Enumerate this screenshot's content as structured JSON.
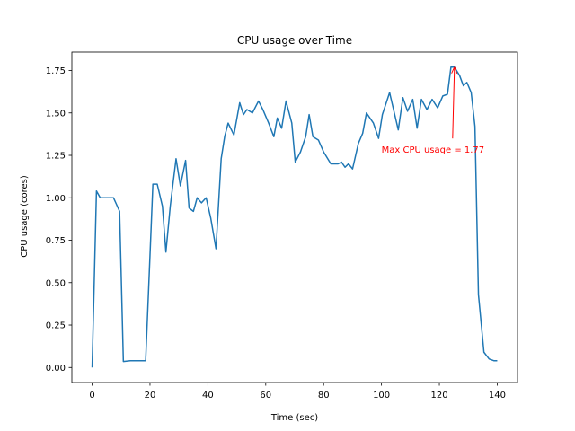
{
  "chart_data": {
    "type": "line",
    "title": "CPU usage over Time",
    "xlabel": "Time (sec)",
    "ylabel": "CPU usage (cores)",
    "x": [
      0,
      1.5,
      2.8,
      4.9,
      7.4,
      9.5,
      10.8,
      13.2,
      16.3,
      18.5,
      20,
      21,
      22.5,
      24.3,
      25.5,
      27,
      29,
      30.5,
      32.3,
      33.5,
      35,
      36.3,
      37.8,
      39.4,
      41,
      42.8,
      44.6,
      45.8,
      47,
      49,
      51,
      52.3,
      53.5,
      55.4,
      57.5,
      59,
      61,
      62.8,
      64,
      65.5,
      67,
      69,
      70.2,
      72,
      73.8,
      75,
      76.3,
      78.2,
      80,
      82.5,
      85,
      86.2,
      87.4,
      88.6,
      90,
      92,
      93.5,
      94.8,
      97.2,
      99,
      100.3,
      102.8,
      104.3,
      105.8,
      107.4,
      109,
      110.8,
      112.3,
      113.8,
      115.7,
      117.5,
      119.4,
      121.2,
      122.8,
      124,
      125.2,
      127,
      128.3,
      129.5,
      131,
      132.3,
      133.5,
      135.4,
      137.2,
      138.8,
      140
    ],
    "series": [
      {
        "name": "CPU usage",
        "color": "#1f77b4",
        "values": [
          0,
          1.04,
          1.0,
          1.0,
          1.0,
          0.92,
          0.035,
          0.04,
          0.04,
          0.04,
          0.66,
          1.08,
          1.08,
          0.95,
          0.68,
          0.95,
          1.23,
          1.07,
          1.22,
          0.94,
          0.92,
          1.0,
          0.97,
          1.0,
          0.88,
          0.7,
          1.23,
          1.36,
          1.44,
          1.37,
          1.56,
          1.49,
          1.52,
          1.5,
          1.57,
          1.52,
          1.44,
          1.36,
          1.47,
          1.41,
          1.57,
          1.44,
          1.21,
          1.27,
          1.36,
          1.49,
          1.36,
          1.34,
          1.27,
          1.2,
          1.2,
          1.21,
          1.18,
          1.2,
          1.17,
          1.32,
          1.38,
          1.5,
          1.44,
          1.35,
          1.49,
          1.62,
          1.51,
          1.4,
          1.59,
          1.51,
          1.58,
          1.41,
          1.58,
          1.52,
          1.58,
          1.53,
          1.6,
          1.61,
          1.77,
          1.77,
          1.72,
          1.66,
          1.68,
          1.62,
          1.42,
          0.43,
          0.09,
          0.05,
          0.04,
          0.04
        ]
      }
    ],
    "xlim": [
      -7,
      147
    ],
    "ylim": [
      -0.0885,
      1.8585
    ],
    "xticks": [
      0,
      20,
      40,
      60,
      80,
      100,
      120,
      140
    ],
    "yticks": [
      {
        "value": 0,
        "label": "0.00"
      },
      {
        "value": 0.25,
        "label": "0.25"
      },
      {
        "value": 0.5,
        "label": "0.50"
      },
      {
        "value": 0.75,
        "label": "0.75"
      },
      {
        "value": 1,
        "label": "1.00"
      },
      {
        "value": 1.25,
        "label": "1.25"
      },
      {
        "value": 1.5,
        "label": "1.50"
      },
      {
        "value": 1.75,
        "label": "1.75"
      }
    ],
    "grid": false,
    "annotation": {
      "text": "Max CPU usage = 1.77",
      "color": "#ff0000",
      "xy": [
        125.2,
        1.77
      ],
      "xytext": [
        100,
        1.265
      ]
    }
  }
}
